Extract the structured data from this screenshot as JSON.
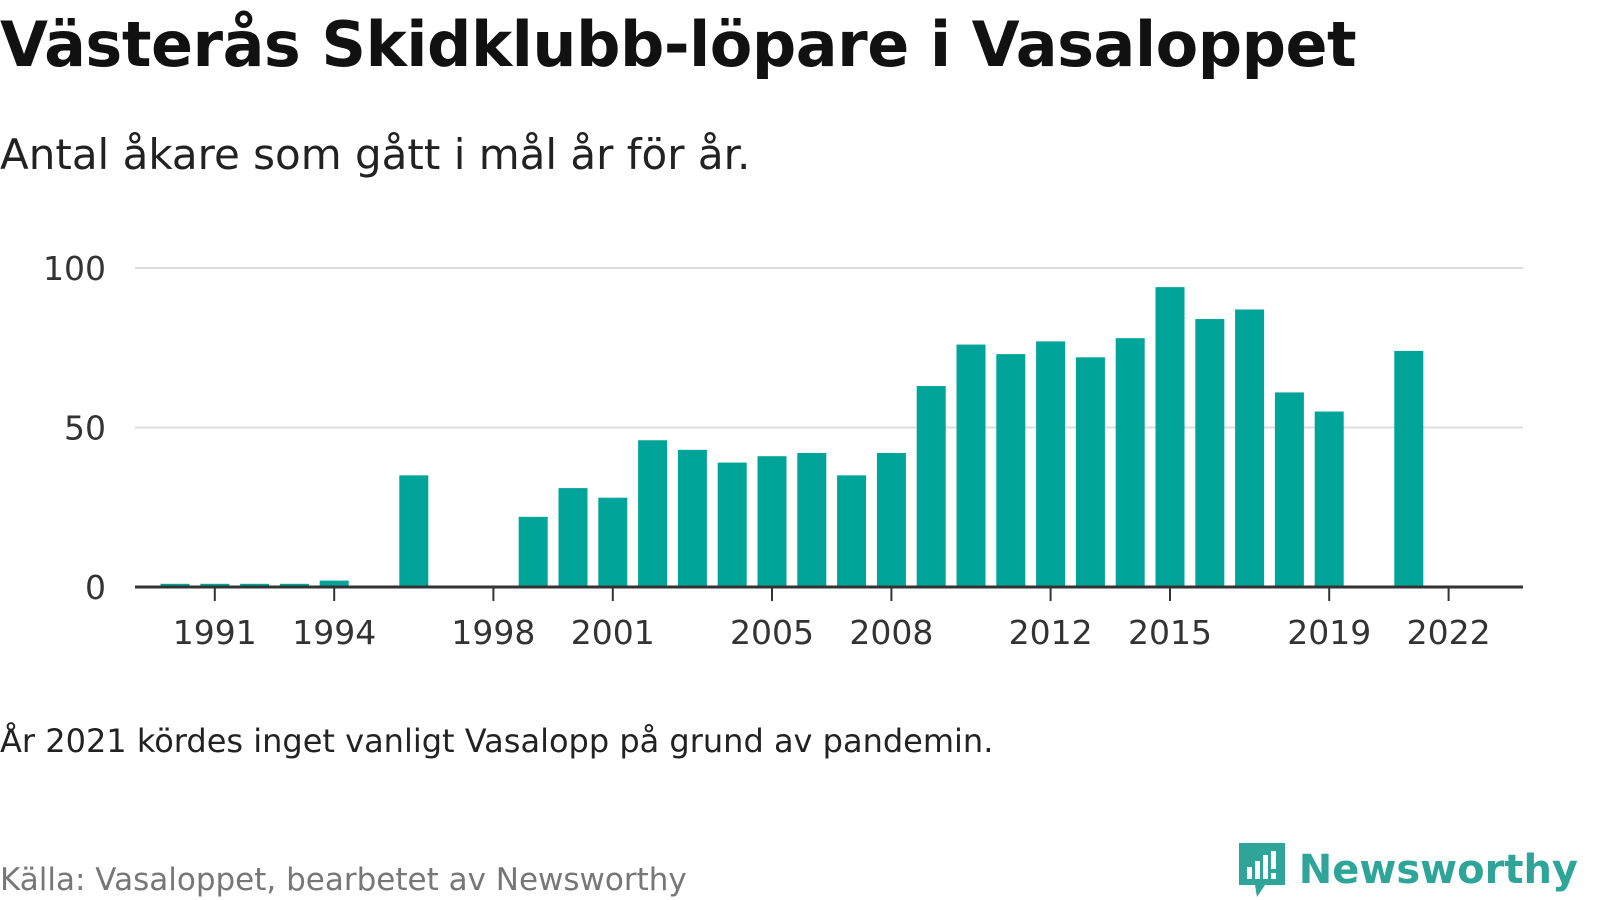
{
  "title": "Västerås Skidklubb-löpare i Vasaloppet",
  "subtitle": "Antal åkare som gått i mål år för år.",
  "note": "År 2021 kördes inget vanligt Vasalopp på grund av pandemin.",
  "source": "Källa: Vasaloppet, bearbetet av Newsworthy",
  "brand": {
    "name": "Newsworthy",
    "icon": "newsworthy-logo-icon"
  },
  "colors": {
    "bar": "#00a499",
    "grid": "#dddddd",
    "axis": "#333333",
    "brand": "#2fa59a"
  },
  "chart_data": {
    "type": "bar",
    "title": "Västerås Skidklubb-löpare i Vasaloppet",
    "subtitle": "Antal åkare som gått i mål år för år.",
    "xlabel": "",
    "ylabel": "",
    "ylim": [
      0,
      100
    ],
    "yticks": [
      0,
      50,
      100
    ],
    "xticks": [
      1991,
      1994,
      1998,
      2001,
      2005,
      2008,
      2012,
      2015,
      2019,
      2022
    ],
    "grid": true,
    "categories": [
      1990,
      1991,
      1992,
      1993,
      1994,
      1995,
      1996,
      1997,
      1998,
      1999,
      2000,
      2001,
      2002,
      2003,
      2004,
      2005,
      2006,
      2007,
      2008,
      2009,
      2010,
      2011,
      2012,
      2013,
      2014,
      2015,
      2016,
      2017,
      2018,
      2019,
      2020,
      2021,
      2022
    ],
    "values": [
      1,
      1,
      1,
      1,
      2,
      null,
      35,
      null,
      null,
      22,
      31,
      28,
      46,
      43,
      39,
      41,
      42,
      35,
      42,
      63,
      76,
      73,
      77,
      72,
      78,
      94,
      84,
      87,
      61,
      55,
      null,
      74,
      null
    ]
  }
}
